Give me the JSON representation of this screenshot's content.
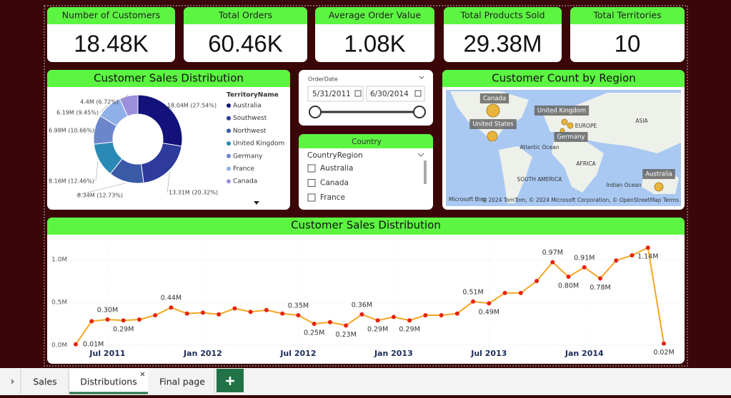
{
  "kpis": [
    {
      "label": "Number of Customers",
      "value": "18.48K"
    },
    {
      "label": "Total Orders",
      "value": "60.46K"
    },
    {
      "label": "Average Order Value",
      "value": "1.08K"
    },
    {
      "label": "Total Products Sold",
      "value": "29.38M"
    },
    {
      "label": "Total Territories",
      "value": "10"
    }
  ],
  "chart_data": [
    {
      "type": "donut",
      "title": "Customer Sales Distribution",
      "legend_title": "TerritoryName",
      "categories": [
        "Australia",
        "Southwest",
        "Northwest",
        "United Kingdom",
        "Germany",
        "France",
        "Canada"
      ],
      "values": [
        18040000,
        13310000,
        8340000,
        8160000,
        6980000,
        6190000,
        4400000
      ],
      "value_labels": [
        "18.04M (27.54%)",
        "13.31M (20.32%)",
        "8.34M (12.73%)",
        "8.16M (12.46%)",
        "6.98M (10.66%)",
        "6.19M (9.45%)",
        "4.4M (6.72%)"
      ],
      "colors": [
        "#12127a",
        "#2e3a9c",
        "#3a5aa8",
        "#2b8ab5",
        "#6c86cc",
        "#8eafe8",
        "#9c8fdc"
      ]
    },
    {
      "type": "line",
      "title": "Customer Sales Distribution",
      "categories": [
        null,
        null,
        "Jul 2011",
        null,
        null,
        null,
        null,
        null,
        "Jan 2012",
        null,
        null,
        null,
        null,
        null,
        "Jul 2012",
        null,
        null,
        null,
        null,
        null,
        "Jan 2013",
        null,
        null,
        null,
        null,
        null,
        "Jul 2013",
        null,
        null,
        null,
        null,
        null,
        "Jan 2014",
        null,
        null,
        null,
        null,
        null
      ],
      "values": [
        10000,
        280000,
        300000,
        290000,
        300000,
        350000,
        440000,
        370000,
        380000,
        360000,
        430000,
        390000,
        410000,
        370000,
        350000,
        250000,
        270000,
        230000,
        360000,
        290000,
        330000,
        290000,
        350000,
        350000,
        370000,
        510000,
        490000,
        610000,
        610000,
        750000,
        970000,
        800000,
        910000,
        780000,
        990000,
        1050000,
        1140000,
        20000
      ],
      "value_labels": [
        "0.01M",
        null,
        "0.30M",
        "0.29M",
        null,
        null,
        "0.44M",
        null,
        null,
        null,
        null,
        null,
        null,
        null,
        "0.35M",
        "0.25M",
        null,
        "0.23M",
        "0.36M",
        "0.29M",
        null,
        "0.29M",
        null,
        null,
        null,
        "0.51M",
        "0.49M",
        null,
        null,
        null,
        "0.97M",
        "0.80M",
        "0.91M",
        "0.78M",
        null,
        null,
        "1.14M",
        "0.02M"
      ],
      "color": "#f5a623",
      "marker_color": "#e32412",
      "ylim": [
        0,
        1200000
      ],
      "yticks": [
        {
          "value": 0,
          "label": "0.0M"
        },
        {
          "value": 500000,
          "label": "0.5M"
        },
        {
          "value": 1000000,
          "label": "1.0M"
        }
      ],
      "grid": true
    }
  ],
  "date_slicer": {
    "title": "OrderDate",
    "start": "5/31/2011",
    "end": "6/30/2014"
  },
  "country_slicer": {
    "title": "Country",
    "field": "CountryRegion",
    "items": [
      "Australia",
      "Canada",
      "France"
    ]
  },
  "map": {
    "title": "Customer Count by Region",
    "callouts": [
      "Canada",
      "United Kingdom",
      "United States",
      "Germany",
      "Australia"
    ],
    "places": [
      "EUROPE",
      "ASIA",
      "Atlantic Ocean",
      "AFRICA",
      "SOUTH AMERICA",
      "Indian Ocean"
    ],
    "brand": "Microsoft Bing",
    "credits": "© 2024 TomTom, © 2024 Microsoft Corporation, © OpenStreetMap  Terms"
  },
  "tabs": [
    "Sales",
    "Distributions",
    "Final page"
  ]
}
